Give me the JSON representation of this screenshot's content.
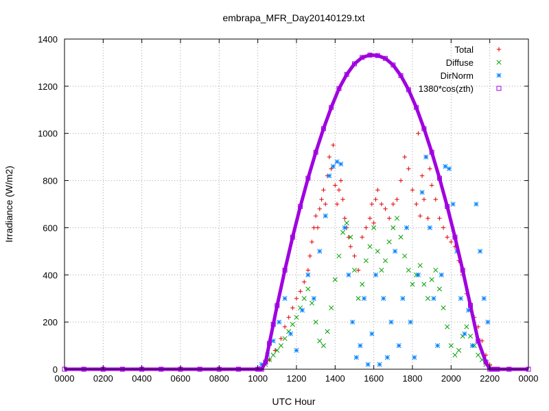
{
  "chart_data": {
    "type": "scatter",
    "title": "embrapa_MFR_Day20140129.txt",
    "xlabel": "UTC Hour",
    "ylabel": "Irradiance (W/m2)",
    "xlim": [
      0,
      24
    ],
    "ylim": [
      0,
      1400
    ],
    "x_ticks": [
      0,
      2,
      4,
      6,
      8,
      10,
      12,
      14,
      16,
      18,
      20,
      22,
      24
    ],
    "x_tick_labels": [
      "0000",
      "0200",
      "0400",
      "0600",
      "0800",
      "1000",
      "1200",
      "1400",
      "1600",
      "1800",
      "2000",
      "2200",
      "0000"
    ],
    "y_ticks": [
      0,
      200,
      400,
      600,
      800,
      1000,
      1200,
      1400
    ],
    "y_tick_labels": [
      "0",
      "200",
      "400",
      "600",
      "800",
      "1000",
      "1200",
      "1400"
    ],
    "grid": true,
    "legend_position": "top-right",
    "series": [
      {
        "name": "Total",
        "marker": "plus",
        "color": "#e00000",
        "x": [
          10.6,
          10.9,
          11.2,
          11.4,
          11.6,
          11.8,
          12.0,
          12.2,
          12.4,
          12.6,
          12.7,
          12.8,
          12.9,
          13.0,
          13.1,
          13.2,
          13.3,
          13.4,
          13.5,
          13.6,
          13.7,
          13.8,
          13.9,
          14.0,
          14.1,
          14.2,
          14.3,
          14.4,
          14.5,
          14.6,
          14.7,
          14.8,
          15.0,
          15.2,
          15.4,
          15.6,
          15.8,
          15.9,
          16.0,
          16.1,
          16.2,
          16.4,
          16.6,
          16.8,
          17.0,
          17.2,
          17.4,
          17.6,
          17.8,
          18.0,
          18.2,
          18.3,
          18.4,
          18.5,
          18.6,
          18.7,
          18.8,
          18.9,
          19.0,
          19.2,
          19.4,
          19.6,
          19.8,
          20.0,
          20.2,
          20.4,
          20.6,
          20.8,
          21.0,
          21.2,
          21.4,
          21.6,
          21.8,
          22.0
        ],
        "y": [
          40,
          80,
          130,
          180,
          220,
          260,
          300,
          330,
          370,
          420,
          480,
          540,
          600,
          650,
          600,
          680,
          720,
          760,
          700,
          820,
          900,
          850,
          950,
          780,
          700,
          760,
          800,
          720,
          640,
          600,
          560,
          520,
          480,
          420,
          560,
          600,
          640,
          700,
          620,
          720,
          760,
          700,
          680,
          640,
          700,
          720,
          800,
          900,
          850,
          760,
          700,
          1000,
          650,
          820,
          720,
          900,
          640,
          850,
          780,
          720,
          640,
          600,
          560,
          540,
          520,
          460,
          400,
          320,
          280,
          220,
          180,
          120,
          60,
          20
        ]
      },
      {
        "name": "Diffuse",
        "marker": "cross",
        "color": "#00a000",
        "x": [
          10.4,
          10.6,
          10.8,
          11.0,
          11.2,
          11.4,
          11.6,
          11.8,
          12.0,
          12.2,
          12.4,
          12.6,
          12.8,
          13.0,
          13.2,
          13.4,
          13.6,
          13.8,
          14.0,
          14.2,
          14.4,
          14.6,
          14.8,
          15.0,
          15.2,
          15.4,
          15.6,
          15.8,
          16.0,
          16.2,
          16.4,
          16.6,
          16.8,
          17.0,
          17.2,
          17.4,
          17.6,
          17.8,
          18.0,
          18.2,
          18.4,
          18.6,
          18.8,
          19.0,
          19.2,
          19.4,
          19.6,
          19.8,
          20.0,
          20.2,
          20.4,
          20.6,
          20.8,
          21.0,
          21.2,
          21.4,
          21.6,
          21.8,
          22.0
        ],
        "y": [
          20,
          40,
          60,
          80,
          100,
          130,
          160,
          190,
          220,
          260,
          300,
          340,
          280,
          200,
          120,
          100,
          160,
          260,
          380,
          480,
          580,
          620,
          560,
          420,
          300,
          360,
          460,
          520,
          600,
          500,
          420,
          460,
          540,
          600,
          640,
          560,
          480,
          420,
          360,
          400,
          440,
          360,
          300,
          380,
          420,
          340,
          260,
          180,
          100,
          60,
          80,
          140,
          180,
          140,
          100,
          60,
          40,
          20,
          10
        ]
      },
      {
        "name": "DirNorm",
        "marker": "star",
        "color": "#0080ff",
        "x": [
          10.2,
          10.5,
          10.8,
          11.1,
          11.4,
          11.7,
          12.0,
          12.3,
          12.6,
          12.9,
          13.2,
          13.5,
          13.7,
          13.9,
          14.1,
          14.3,
          14.5,
          14.7,
          14.9,
          15.1,
          15.3,
          15.5,
          15.7,
          15.9,
          16.1,
          16.3,
          16.5,
          16.7,
          16.9,
          17.1,
          17.3,
          17.5,
          17.7,
          17.9,
          18.1,
          18.3,
          18.5,
          18.7,
          18.9,
          19.1,
          19.3,
          19.5,
          19.7,
          19.9,
          20.1,
          20.3,
          20.5,
          20.7,
          20.9,
          21.1,
          21.3,
          21.5,
          21.7,
          21.9
        ],
        "y": [
          20,
          60,
          120,
          200,
          300,
          150,
          80,
          250,
          400,
          300,
          500,
          650,
          820,
          860,
          880,
          870,
          600,
          400,
          200,
          50,
          100,
          300,
          20,
          150,
          400,
          20,
          300,
          50,
          200,
          500,
          100,
          300,
          600,
          200,
          50,
          400,
          750,
          900,
          600,
          300,
          100,
          400,
          860,
          850,
          700,
          500,
          300,
          150,
          250,
          100,
          700,
          500,
          300,
          200
        ]
      },
      {
        "name": "1380*cos(zth)",
        "marker": "square",
        "color": "#a000e0",
        "x": [
          0,
          1,
          2,
          3,
          4,
          5,
          6,
          7,
          8,
          9,
          10,
          10.2,
          10.4,
          10.6,
          10.8,
          11.0,
          11.4,
          11.8,
          12.2,
          12.6,
          13.0,
          13.4,
          13.8,
          14.2,
          14.6,
          15.0,
          15.4,
          15.8,
          16.2,
          16.6,
          17.0,
          17.4,
          17.8,
          18.2,
          18.6,
          19.0,
          19.4,
          19.8,
          20.2,
          20.6,
          21.0,
          21.4,
          21.8,
          22.0,
          22.2,
          22.4,
          23,
          24
        ],
        "y": [
          0,
          0,
          0,
          0,
          0,
          0,
          0,
          0,
          0,
          0,
          0,
          0,
          30,
          110,
          190,
          270,
          420,
          560,
          690,
          810,
          920,
          1020,
          1110,
          1190,
          1250,
          1295,
          1322,
          1332,
          1330,
          1318,
          1290,
          1245,
          1185,
          1110,
          1020,
          920,
          810,
          690,
          560,
          420,
          270,
          120,
          30,
          0,
          0,
          0,
          0,
          0
        ]
      }
    ]
  }
}
